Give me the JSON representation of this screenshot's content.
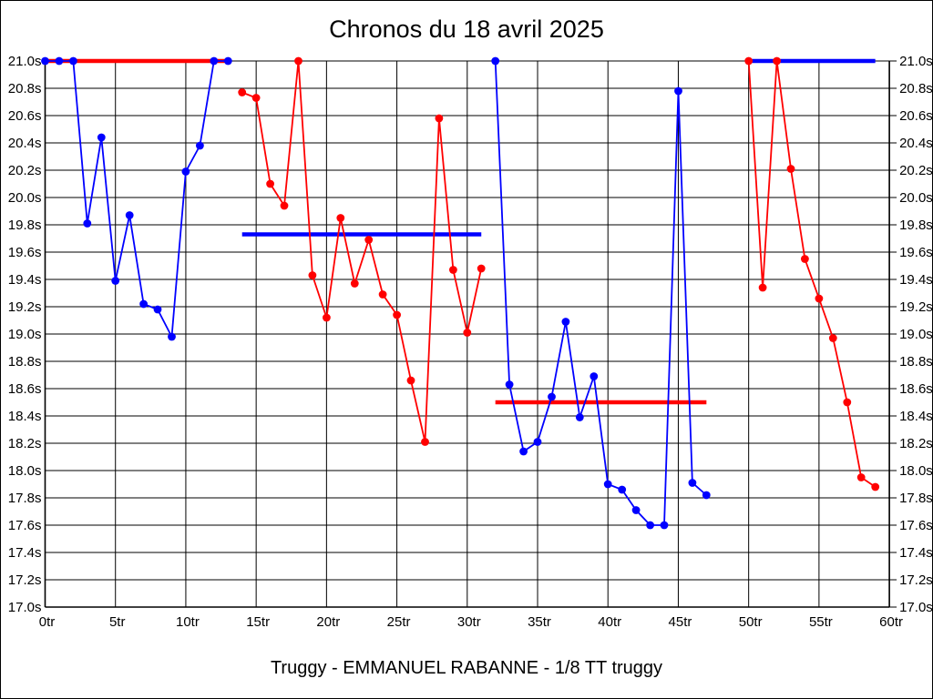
{
  "chart_data": {
    "type": "line",
    "title": "Chronos du 18 avril 2025",
    "subtitle": "Truggy - EMMANUEL RABANNE - 1/8 TT truggy",
    "xlabel": "",
    "ylabel": "",
    "x_unit": "tr",
    "y_unit": "s",
    "xlim": [
      0,
      60
    ],
    "x_tick_step": 5,
    "ylim": [
      17.0,
      21.0
    ],
    "y_tick_step": 0.2,
    "grid": true,
    "legend": "none",
    "colors": {
      "blue": "#0000ff",
      "red": "#ff0000",
      "grid": "#000000",
      "background": "#ffffff"
    },
    "series": [
      {
        "name": "stint-1-blue",
        "color": "#0000ff",
        "x": [
          0,
          1,
          2,
          3,
          4,
          5,
          6,
          7,
          8,
          9,
          10,
          11,
          12,
          13
        ],
        "y": [
          21.0,
          21.0,
          21.0,
          19.81,
          20.44,
          19.39,
          19.87,
          19.22,
          19.18,
          18.98,
          20.19,
          20.38,
          21.0,
          21.0
        ]
      },
      {
        "name": "stint-2-red",
        "color": "#ff0000",
        "x": [
          14,
          15,
          16,
          17,
          18,
          19,
          20,
          21,
          22,
          23,
          24,
          25,
          26,
          27,
          28,
          29,
          30,
          31
        ],
        "y": [
          20.77,
          20.73,
          20.1,
          19.94,
          21.0,
          19.43,
          19.12,
          19.85,
          19.37,
          19.69,
          19.29,
          19.14,
          18.66,
          18.21,
          20.58,
          19.47,
          19.01,
          19.48
        ]
      },
      {
        "name": "stint-3-blue",
        "color": "#0000ff",
        "x": [
          32,
          33,
          34,
          35,
          36,
          37,
          38,
          39,
          40,
          41,
          42,
          43,
          44,
          45,
          46,
          47
        ],
        "y": [
          21.0,
          18.63,
          18.14,
          18.21,
          18.54,
          19.09,
          18.39,
          18.69,
          17.9,
          17.86,
          17.71,
          17.6,
          17.6,
          20.78,
          17.91,
          17.82
        ]
      },
      {
        "name": "stint-4-red",
        "color": "#ff0000",
        "x": [
          50,
          51,
          52,
          53,
          54,
          55,
          56,
          57,
          58,
          59
        ],
        "y": [
          21.0,
          19.34,
          21.0,
          20.21,
          19.55,
          19.26,
          18.97,
          18.5,
          17.95,
          17.88
        ]
      }
    ],
    "reference_lines": [
      {
        "name": "avg-line-1",
        "color": "#ff0000",
        "y": 21.0,
        "x_start": 0,
        "x_end": 13
      },
      {
        "name": "avg-line-2",
        "color": "#0000ff",
        "y": 19.73,
        "x_start": 14,
        "x_end": 31
      },
      {
        "name": "avg-line-3",
        "color": "#ff0000",
        "y": 18.5,
        "x_start": 32,
        "x_end": 47
      },
      {
        "name": "avg-line-4",
        "color": "#0000ff",
        "y": 21.0,
        "x_start": 50,
        "x_end": 59
      }
    ]
  }
}
